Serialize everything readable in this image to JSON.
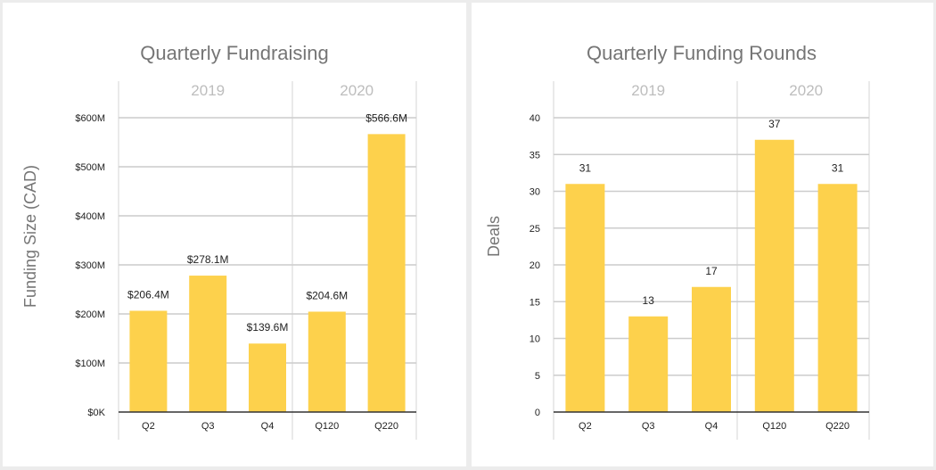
{
  "charts": [
    {
      "id": "fundraising",
      "chart_data": {
        "type": "bar",
        "title": "Quarterly Fundraising",
        "ylabel": "Funding Size (CAD)",
        "xlabel": "",
        "categories": [
          "Q2",
          "Q3",
          "Q4",
          "Q120",
          "Q220"
        ],
        "year_groups": [
          {
            "label": "2019",
            "categories": [
              "Q2",
              "Q3",
              "Q4"
            ]
          },
          {
            "label": "2020",
            "categories": [
              "Q120",
              "Q220"
            ]
          }
        ],
        "series": [
          {
            "name": "Funding Size",
            "values": [
              206.4,
              278.1,
              139.6,
              204.6,
              566.6
            ],
            "labels": [
              "$206.4M",
              "$278.1M",
              "$139.6M",
              "$204.6M",
              "$566.6M"
            ]
          }
        ],
        "ylim": [
          0,
          600
        ],
        "yticks": [
          0,
          100,
          200,
          300,
          400,
          500,
          600
        ],
        "ytick_labels": [
          "$0K",
          "$100M",
          "$200M",
          "$300M",
          "$400M",
          "$500M",
          "$600M"
        ],
        "grid": true,
        "bar_color": "#fdd14c"
      }
    },
    {
      "id": "rounds",
      "chart_data": {
        "type": "bar",
        "title": "Quarterly Funding Rounds",
        "ylabel": "Deals",
        "xlabel": "",
        "categories": [
          "Q2",
          "Q3",
          "Q4",
          "Q120",
          "Q220"
        ],
        "year_groups": [
          {
            "label": "2019",
            "categories": [
              "Q2",
              "Q3",
              "Q4"
            ]
          },
          {
            "label": "2020",
            "categories": [
              "Q120",
              "Q220"
            ]
          }
        ],
        "series": [
          {
            "name": "Deals",
            "values": [
              31,
              13,
              17,
              37,
              31
            ],
            "labels": [
              "31",
              "13",
              "17",
              "37",
              "31"
            ]
          }
        ],
        "ylim": [
          0,
          40
        ],
        "yticks": [
          0,
          5,
          10,
          15,
          20,
          25,
          30,
          35,
          40
        ],
        "ytick_labels": [
          "0",
          "5",
          "10",
          "15",
          "20",
          "25",
          "30",
          "35",
          "40"
        ],
        "grid": true,
        "bar_color": "#fdd14c"
      }
    }
  ]
}
